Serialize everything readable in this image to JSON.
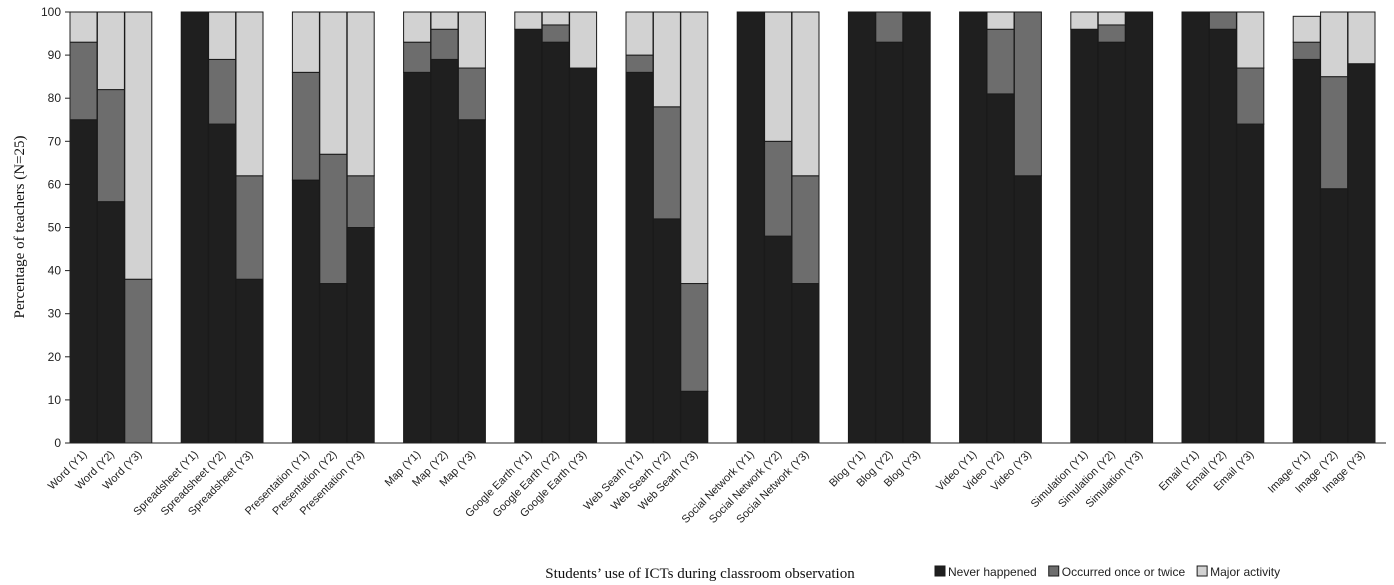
{
  "chart_data": {
    "type": "bar",
    "stacked": true,
    "xlabel": "Students’ use of ICTs during classroom observation",
    "ylabel": "Percentage of teachers (N=25)",
    "ylim": [
      0,
      100
    ],
    "yticks": [
      "0",
      "10",
      "20",
      "30",
      "40",
      "50",
      "60",
      "70",
      "80",
      "90",
      "100"
    ],
    "grid": false,
    "legend_position": "bottom-right",
    "colors": [
      "#1f1f1f",
      "#6d6d6d",
      "#d2d2d2"
    ],
    "categories": [
      "Word (Y1)",
      "Word (Y2)",
      "Word (Y3)",
      "Spreadsheet (Y1)",
      "Spreadsheet (Y2)",
      "Spreadsheet (Y3)",
      "Presentation (Y1)",
      "Presentation (Y2)",
      "Presentation (Y3)",
      "Map (Y1)",
      "Map (Y2)",
      "Map (Y3)",
      "Google Earth (Y1)",
      "Google Earth (Y2)",
      "Google Earth (Y3)",
      "Web Searh (Y1)",
      "Web Searh (Y2)",
      "Web Searh (Y3)",
      "Social Network (Y1)",
      "Social Network (Y2)",
      "Social Network (Y3)",
      "Blog (Y1)",
      "Blog (Y2)",
      "Blog (Y3)",
      "Video (Y1)",
      "Video (Y2)",
      "Video (Y3)",
      "Simulation (Y1)",
      "Simulation (Y2)",
      "Simulation (Y3)",
      "Email (Y1)",
      "Email (Y2)",
      "Email (Y3)",
      "Image (Y1)",
      "Image (Y2)",
      "Image (Y3)"
    ],
    "series": [
      {
        "name": "Never happened",
        "values": [
          75,
          56,
          0,
          100,
          74,
          38,
          61,
          37,
          50,
          86,
          89,
          75,
          96,
          93,
          87,
          86,
          52,
          12,
          100,
          48,
          37,
          100,
          93,
          100,
          100,
          81,
          62,
          96,
          93,
          100,
          100,
          96,
          74,
          89,
          59,
          88
        ]
      },
      {
        "name": "Occurred once or twice",
        "values": [
          18,
          26,
          38,
          0,
          15,
          24,
          25,
          30,
          12,
          7,
          7,
          12,
          0,
          4,
          0,
          4,
          26,
          25,
          0,
          22,
          25,
          0,
          7,
          0,
          0,
          15,
          38,
          0,
          4,
          0,
          0,
          4,
          13,
          4,
          26,
          0
        ]
      },
      {
        "name": "Major activity",
        "values": [
          7,
          18,
          62,
          0,
          11,
          38,
          14,
          33,
          38,
          7,
          4,
          13,
          4,
          3,
          13,
          10,
          22,
          63,
          0,
          30,
          38,
          0,
          0,
          0,
          0,
          4,
          0,
          4,
          3,
          0,
          0,
          0,
          13,
          6,
          15,
          12
        ]
      }
    ]
  }
}
